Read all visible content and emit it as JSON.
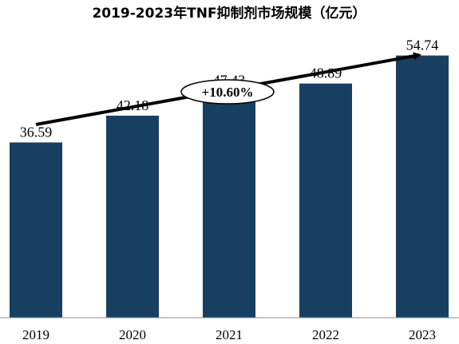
{
  "chart_data": {
    "type": "bar",
    "title": "2019-2023年TNF抑制剂市场规模（亿元）",
    "categories": [
      "2019",
      "2020",
      "2021",
      "2022",
      "2023"
    ],
    "values": [
      36.59,
      42.18,
      47.43,
      48.89,
      54.74
    ],
    "value_labels": [
      "36.59",
      "42.18",
      "47.43",
      "48.89",
      "54.74"
    ],
    "ylim": [
      0,
      60
    ],
    "grid": false,
    "legend": "none",
    "annotation": "+10.60%",
    "colors": {
      "bar": "#163f61",
      "text": "#000000",
      "axis": "#888888"
    }
  }
}
